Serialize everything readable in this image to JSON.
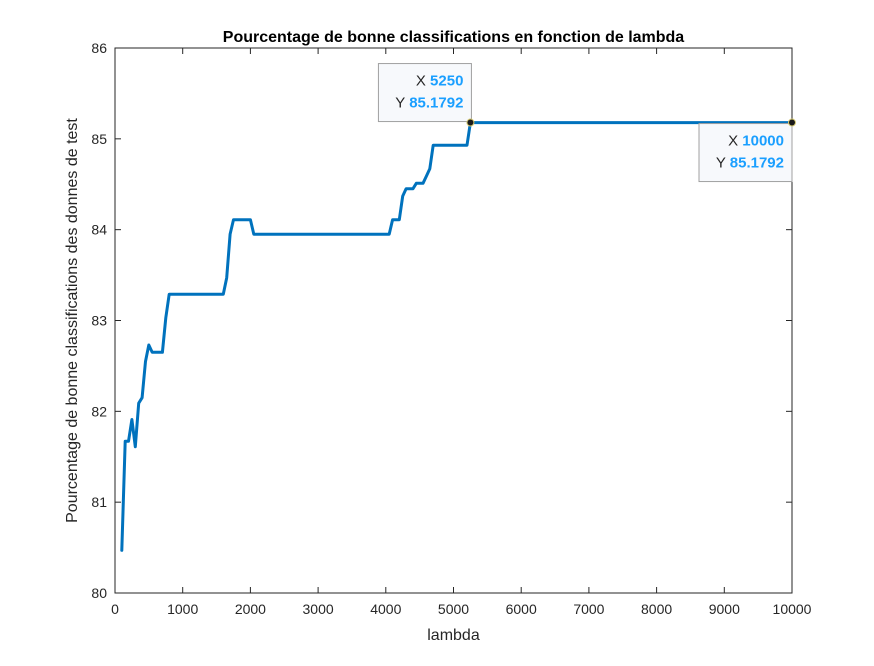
{
  "chart_data": {
    "type": "line",
    "title": "Pourcentage de bonne classifications en fonction de lambda",
    "xlabel": "lambda",
    "ylabel": "Pourcentage de bonne classifications des donnes de test",
    "xlim": [
      0,
      10000
    ],
    "ylim": [
      80,
      86
    ],
    "xticks": [
      0,
      1000,
      2000,
      3000,
      4000,
      5000,
      6000,
      7000,
      8000,
      9000,
      10000
    ],
    "yticks": [
      80,
      81,
      82,
      83,
      84,
      85,
      86
    ],
    "grid": false,
    "series": [
      {
        "color": "#0072bd",
        "x": [
          100,
          150,
          200,
          250,
          300,
          350,
          400,
          450,
          500,
          550,
          600,
          650,
          700,
          750,
          800,
          900,
          1000,
          1100,
          1200,
          1300,
          1400,
          1500,
          1600,
          1650,
          1700,
          1750,
          1800,
          1900,
          1950,
          2000,
          2050,
          2500,
          3000,
          3500,
          4000,
          4050,
          4100,
          4150,
          4200,
          4250,
          4300,
          4350,
          4400,
          4450,
          4500,
          4550,
          4600,
          4650,
          4700,
          4750,
          4800,
          4900,
          5000,
          5100,
          5200,
          5250,
          6000,
          7000,
          8000,
          9000,
          10000
        ],
        "y": [
          80.47,
          81.67,
          81.67,
          81.91,
          81.61,
          82.09,
          82.15,
          82.55,
          82.73,
          82.65,
          82.65,
          82.65,
          82.65,
          83.03,
          83.29,
          83.29,
          83.29,
          83.29,
          83.29,
          83.29,
          83.29,
          83.29,
          83.29,
          83.47,
          83.95,
          84.11,
          84.11,
          84.11,
          84.11,
          84.11,
          83.95,
          83.95,
          83.95,
          83.95,
          83.95,
          83.95,
          84.11,
          84.11,
          84.11,
          84.37,
          84.45,
          84.45,
          84.45,
          84.51,
          84.51,
          84.51,
          84.59,
          84.67,
          84.93,
          84.93,
          84.93,
          84.93,
          84.93,
          84.93,
          84.93,
          85.1792,
          85.1792,
          85.1792,
          85.1792,
          85.1792,
          85.1792
        ]
      }
    ],
    "datatips": [
      {
        "x_key": "X",
        "x_value": "5250",
        "y_key": "Y",
        "y_value": "85.1792",
        "point_x": 5250,
        "point_y": 85.1792,
        "placement": "top-left"
      },
      {
        "x_key": "X",
        "x_value": "10000",
        "y_key": "Y",
        "y_value": "85.1792",
        "point_x": 10000,
        "point_y": 85.1792,
        "placement": "bottom-left"
      }
    ]
  }
}
